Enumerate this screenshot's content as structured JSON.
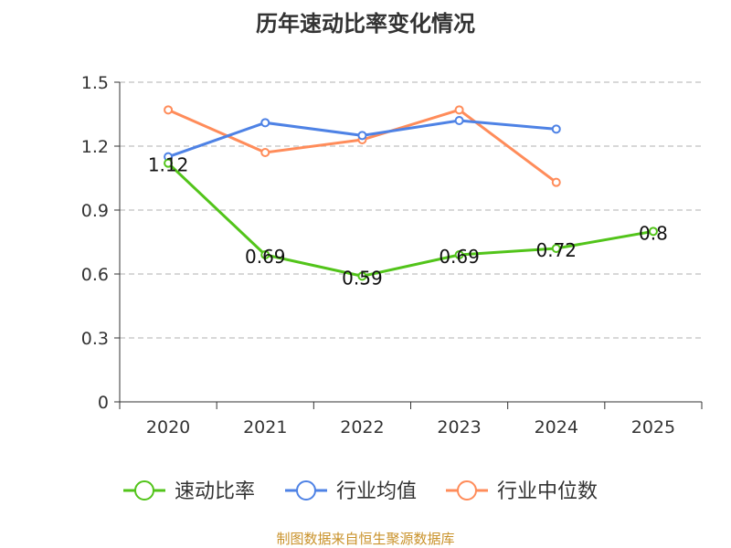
{
  "chart_data": {
    "type": "line",
    "title": "历年速动比率变化情况",
    "categories": [
      "2020",
      "2021",
      "2022",
      "2023",
      "2024",
      "2025"
    ],
    "ylim": [
      0,
      1.5
    ],
    "yticks": [
      "0",
      "0.3",
      "0.6",
      "0.9",
      "1.2",
      "1.5"
    ],
    "grid": true,
    "legend_position": "bottom",
    "series": [
      {
        "name": "速动比率",
        "color": "#52c41a",
        "values": [
          1.12,
          0.69,
          0.59,
          0.69,
          0.72,
          0.8
        ],
        "labels": [
          "1.12",
          "0.69",
          "0.59",
          "0.69",
          "0.72",
          "0.8"
        ]
      },
      {
        "name": "行业均值",
        "color": "#4e82e5",
        "values": [
          1.15,
          1.31,
          1.25,
          1.32,
          1.28,
          null
        ]
      },
      {
        "name": "行业中位数",
        "color": "#ff8c5a",
        "values": [
          1.37,
          1.17,
          1.23,
          1.37,
          1.03,
          null
        ]
      }
    ]
  },
  "source": "制图数据来自恒生聚源数据库"
}
